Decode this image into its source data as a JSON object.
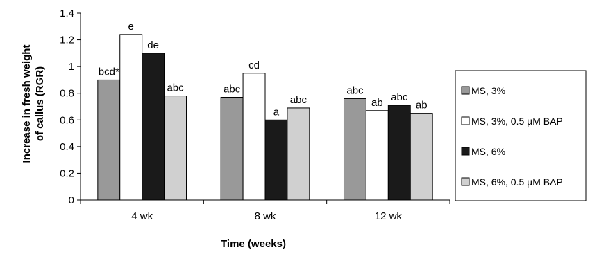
{
  "chart_data": {
    "type": "bar",
    "categories": [
      "4 wk",
      "8 wk",
      "12 wk"
    ],
    "xlabel": "Time (weeks)",
    "ylabel_lines": [
      "Increase in fresh weight",
      "of callus (RGR)"
    ],
    "ylim": [
      0,
      1.4
    ],
    "yticks": [
      "0",
      "0.2",
      "0.4",
      "0.6",
      "0.8",
      "1",
      "1.2",
      "1.4"
    ],
    "grid": false,
    "legend_position": "right",
    "series": [
      {
        "name": "MS, 3%",
        "color": "#999999",
        "values": [
          0.9,
          0.77,
          0.76
        ],
        "labels": [
          "bcd*",
          "abc",
          "abc"
        ]
      },
      {
        "name": "MS, 3%, 0.5 µM BAP",
        "color": "#ffffff",
        "values": [
          1.24,
          0.95,
          0.67
        ],
        "labels": [
          "e",
          "cd",
          "ab"
        ]
      },
      {
        "name": "MS, 6%",
        "color": "#1a1a1a",
        "values": [
          1.1,
          0.6,
          0.71
        ],
        "labels": [
          "de",
          "a",
          "abc"
        ]
      },
      {
        "name": "MS, 6%, 0.5 µM BAP",
        "color": "#d0d0d0",
        "values": [
          0.78,
          0.69,
          0.65
        ],
        "labels": [
          "abc",
          "abc",
          "ab"
        ]
      }
    ]
  }
}
